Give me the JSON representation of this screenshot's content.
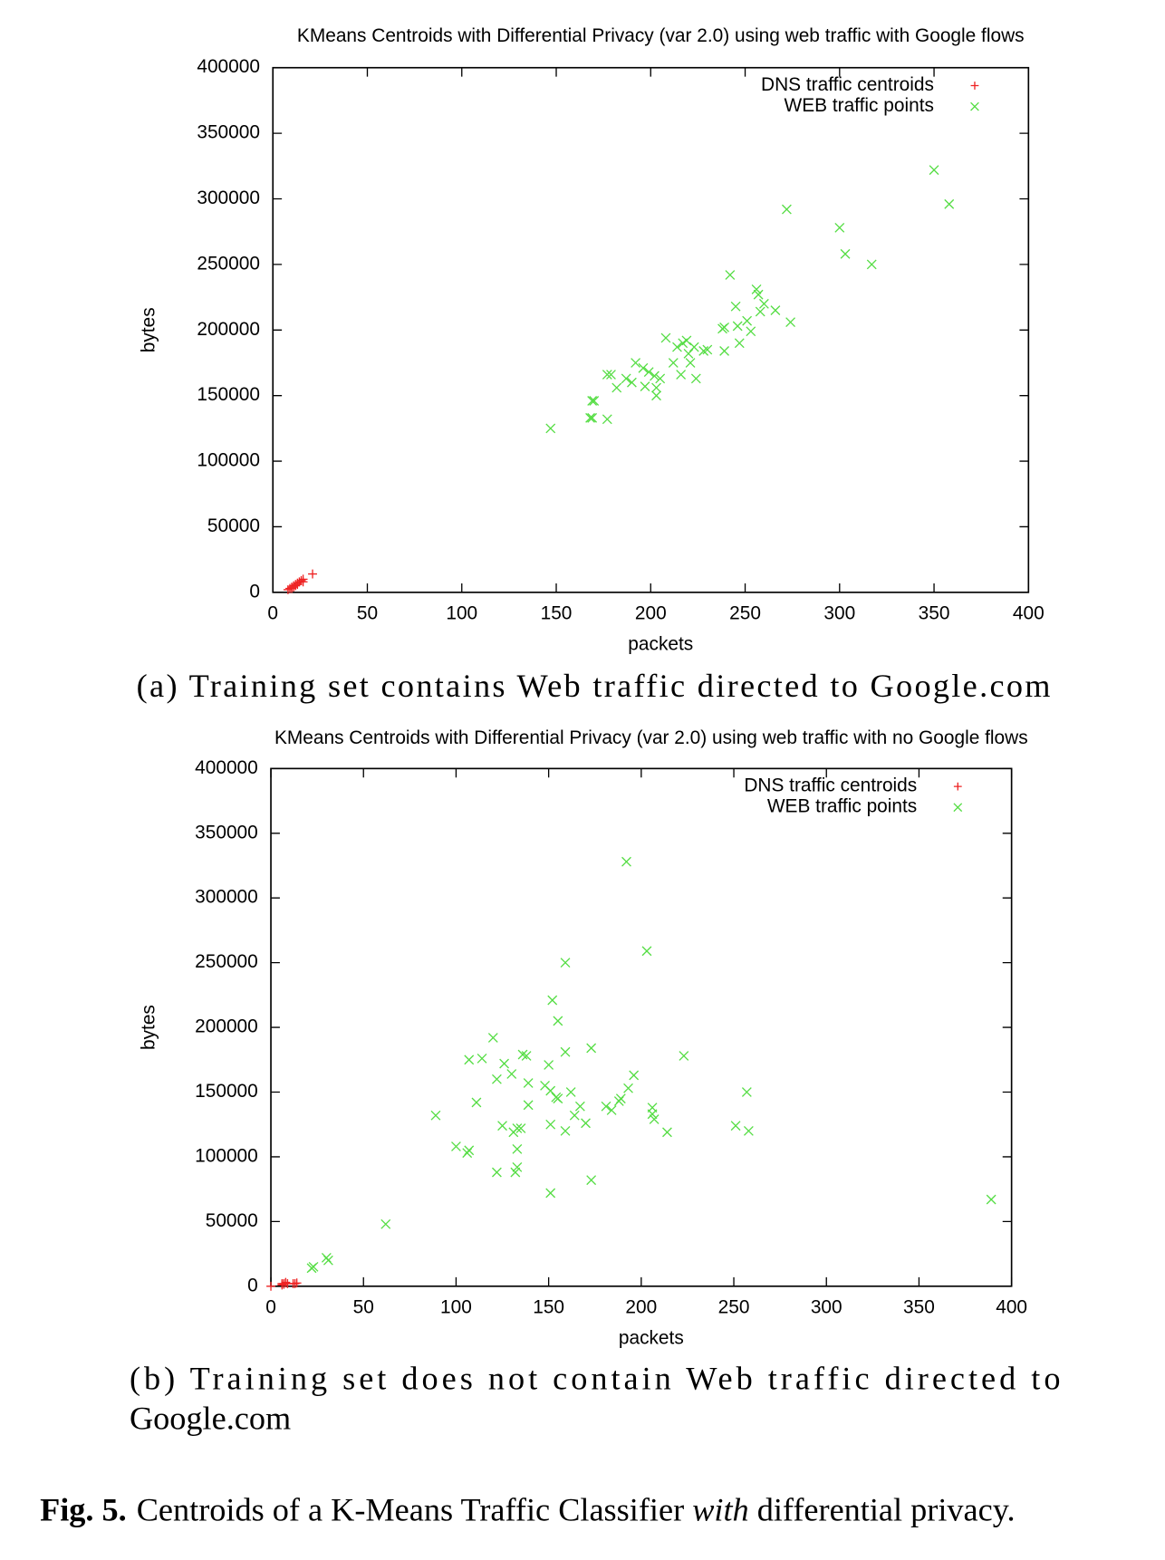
{
  "chart_data": [
    {
      "type": "scatter",
      "title": "KMeans Centroids with Differential Privacy (var 2.0) using web traffic with Google flows",
      "x_label": "packets",
      "y_label": "bytes",
      "xlim": [
        0,
        400
      ],
      "xticks": [
        0,
        50,
        100,
        150,
        200,
        250,
        300,
        350,
        400
      ],
      "ylim": [
        0,
        400000
      ],
      "yticks": [
        0,
        50000,
        100000,
        150000,
        200000,
        250000,
        300000,
        350000,
        400000
      ],
      "legend": "top-right",
      "caption": [
        "(a) Training set contains Web traffic directed to Google.com"
      ],
      "series": [
        {
          "name": "DNS traffic centroids",
          "color": "#ee2222",
          "marker": "+",
          "x": [
            21,
            16,
            8,
            9,
            10,
            11,
            12,
            13,
            14,
            10,
            12,
            15,
            13,
            11,
            16
          ],
          "values": [
            14000,
            10000,
            2000,
            3000,
            4000,
            5000,
            6000,
            7000,
            8000,
            3000,
            5000,
            9000,
            6000,
            4000,
            8000
          ]
        },
        {
          "name": "WEB traffic points",
          "color": "#55dd44",
          "marker": "x",
          "x": [
            350,
            358,
            272,
            300,
            303,
            317,
            242,
            256,
            257,
            260,
            245,
            266,
            274,
            258,
            251,
            246,
            239,
            238,
            253,
            247,
            239,
            230,
            228,
            208,
            219,
            217,
            214,
            223,
            220,
            221,
            216,
            224,
            212,
            192,
            196,
            199,
            202,
            205,
            187,
            190,
            197,
            203,
            203,
            182,
            177,
            179,
            169,
            170,
            168,
            169,
            177,
            147
          ],
          "values": [
            322000,
            296000,
            292000,
            278000,
            258000,
            250000,
            242000,
            231000,
            227000,
            220000,
            218000,
            215000,
            206000,
            214000,
            207000,
            203000,
            202000,
            201000,
            199000,
            190000,
            184000,
            185000,
            184000,
            194000,
            192000,
            190000,
            187000,
            187000,
            182000,
            175000,
            166000,
            163000,
            175000,
            175000,
            171000,
            168000,
            165000,
            163000,
            163000,
            160000,
            157000,
            156000,
            150000,
            156000,
            166000,
            166000,
            146000,
            146000,
            133000,
            133000,
            132000,
            125000
          ]
        }
      ]
    },
    {
      "type": "scatter",
      "title": "KMeans Centroids with Differential Privacy (var 2.0) using web traffic with no Google flows",
      "x_label": "packets",
      "y_label": "bytes",
      "xlim": [
        0,
        400
      ],
      "xticks": [
        0,
        50,
        100,
        150,
        200,
        250,
        300,
        350,
        400
      ],
      "ylim": [
        0,
        400000
      ],
      "yticks": [
        0,
        50000,
        100000,
        150000,
        200000,
        250000,
        300000,
        350000,
        400000
      ],
      "legend": "top-right",
      "caption": [
        "(b) Training set does not contain Web traffic directed to",
        "Google.com"
      ],
      "series": [
        {
          "name": "DNS traffic centroids",
          "color": "#ee2222",
          "marker": "+",
          "x": [
            0,
            6,
            7,
            8,
            7,
            8,
            6,
            9,
            12,
            14,
            13
          ],
          "values": [
            0,
            1000,
            2000,
            2500,
            1500,
            3000,
            2000,
            2000,
            2000,
            2500,
            2000
          ]
        },
        {
          "name": "WEB traffic points",
          "color": "#55dd44",
          "marker": "x",
          "x": [
            192,
            203,
            159,
            152,
            155,
            223,
            257,
            389,
            62,
            30,
            31,
            22,
            23,
            120,
            107,
            114,
            126,
            130,
            122,
            136,
            138,
            150,
            159,
            173,
            139,
            111,
            148,
            151,
            154,
            155,
            162,
            167,
            164,
            170,
            181,
            184,
            188,
            189,
            193,
            196,
            206,
            206,
            207,
            214,
            251,
            258,
            89,
            100,
            107,
            106,
            125,
            131,
            133,
            135,
            133,
            133,
            132,
            122,
            151,
            159,
            151,
            173,
            139
          ],
          "values": [
            328000,
            259000,
            250000,
            221000,
            205000,
            178000,
            150000,
            67000,
            48000,
            22000,
            20000,
            14000,
            15000,
            192000,
            175000,
            176000,
            172000,
            164000,
            160000,
            179000,
            178000,
            171000,
            181000,
            184000,
            157000,
            142000,
            155000,
            151000,
            146000,
            145000,
            150000,
            139000,
            132000,
            126000,
            139000,
            136000,
            143000,
            145000,
            153000,
            163000,
            138000,
            133000,
            129000,
            119000,
            124000,
            120000,
            132000,
            108000,
            105000,
            103000,
            124000,
            119000,
            122000,
            122000,
            106000,
            92000,
            88000,
            88000,
            125000,
            120000,
            72000,
            82000,
            140000
          ]
        }
      ]
    }
  ],
  "figure_caption": {
    "label": "Fig. 5.",
    "parts": [
      "Centroids of a K-Means Traffic Classifier ",
      "with",
      " differential privacy."
    ]
  }
}
